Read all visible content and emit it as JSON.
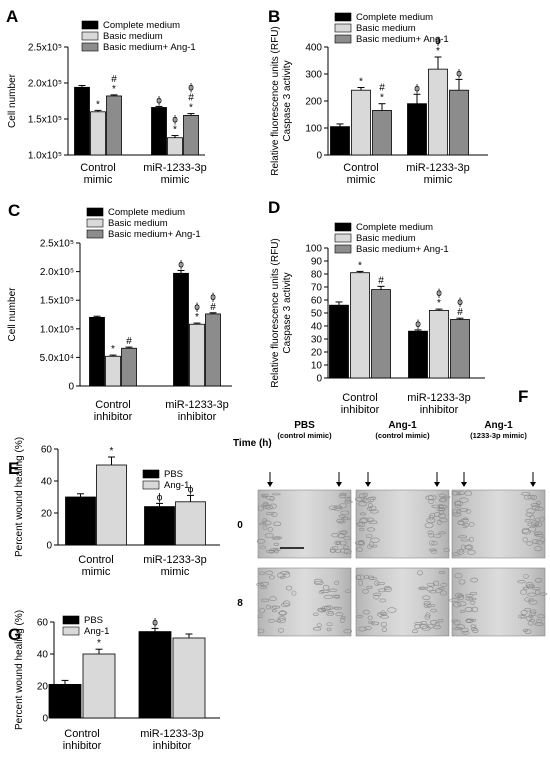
{
  "colors": {
    "black": "#000000",
    "light": "#d9d9d9",
    "gray": "#8c8c8c"
  },
  "chart_data": [
    {
      "panel": "A",
      "type": "bar",
      "categories": [
        "Control\nmimic",
        "miR-1233-3p\nmimic"
      ],
      "ylabel": "Cell number",
      "ylim": [
        100000,
        250000
      ],
      "ytick_labels": [
        "1.0x10⁵",
        "1.5x10⁵",
        "2.0x10⁵",
        "2.5x10⁵"
      ],
      "ytick_values": [
        100000,
        150000,
        200000,
        250000
      ],
      "legend": "top-left",
      "series": [
        {
          "name": "Complete medium",
          "values": [
            194000,
            166000
          ],
          "errors": [
            2500,
            1500
          ],
          "annotations": [
            "",
            "ϕ"
          ]
        },
        {
          "name": "Basic medium",
          "values": [
            160000,
            124000
          ],
          "errors": [
            2000,
            3000
          ],
          "annotations": [
            "*",
            "ϕ\n*"
          ]
        },
        {
          "name": "Basic medium+ Ang-1",
          "values": [
            182000,
            155000
          ],
          "errors": [
            1500,
            2500
          ],
          "annotations": [
            "#\n*",
            "ϕ\n#\n*"
          ]
        }
      ]
    },
    {
      "panel": "B",
      "type": "bar",
      "categories": [
        "Control\nmimic",
        "miR-1233-3p\nmimic"
      ],
      "ylabel": "Relative fluorescence units (RFU)\nCaspase 3 activity",
      "ylim": [
        0,
        400
      ],
      "ytick_labels": [
        "0",
        "100",
        "200",
        "300",
        "400"
      ],
      "ytick_values": [
        0,
        100,
        200,
        300,
        400
      ],
      "legend": "top-left",
      "series": [
        {
          "name": "Complete medium",
          "values": [
            105,
            190
          ],
          "errors": [
            10,
            35
          ],
          "annotations": [
            "",
            "ϕ"
          ]
        },
        {
          "name": "Basic medium",
          "values": [
            240,
            318
          ],
          "errors": [
            10,
            45
          ],
          "annotations": [
            "*",
            "ϕ\n*"
          ]
        },
        {
          "name": "Basic medium+ Ang-1",
          "values": [
            165,
            240
          ],
          "errors": [
            25,
            40
          ],
          "annotations": [
            "#\n*",
            "ϕ"
          ]
        }
      ]
    },
    {
      "panel": "C",
      "type": "bar",
      "categories": [
        "Control\ninhibitor",
        "miR-1233-3p\ninhibitor"
      ],
      "ylabel": "Cell number",
      "ylim": [
        0,
        250000
      ],
      "ytick_labels": [
        "0",
        "5.0x10⁴",
        "1.0x10⁵",
        "1.5x10⁵",
        "2.0x10⁵",
        "2.5x10⁵"
      ],
      "ytick_values": [
        0,
        50000,
        100000,
        150000,
        200000,
        250000
      ],
      "legend": "top-left",
      "series": [
        {
          "name": "Complete medium",
          "values": [
            120000,
            197000
          ],
          "errors": [
            2000,
            5000
          ],
          "annotations": [
            "",
            "ϕ"
          ]
        },
        {
          "name": "Basic medium",
          "values": [
            52000,
            108000
          ],
          "errors": [
            2000,
            2000
          ],
          "annotations": [
            "*",
            "ϕ\n*"
          ]
        },
        {
          "name": "Basic medium+ Ang-1",
          "values": [
            66000,
            126000
          ],
          "errors": [
            2000,
            2000
          ],
          "annotations": [
            "#",
            "ϕ\n#"
          ]
        }
      ]
    },
    {
      "panel": "D",
      "type": "bar",
      "categories": [
        "Control\ninhibitor",
        "miR-1233-3p\ninhibitor"
      ],
      "ylabel": "Relative fluorescence units (RFU)\nCaspase 3 activity",
      "ylim": [
        0,
        100
      ],
      "ytick_labels": [
        "0",
        "10",
        "20",
        "30",
        "40",
        "50",
        "60",
        "70",
        "80",
        "90",
        "100"
      ],
      "ytick_values": [
        0,
        10,
        20,
        30,
        40,
        50,
        60,
        70,
        80,
        90,
        100
      ],
      "legend": "top-left",
      "series": [
        {
          "name": "Complete medium",
          "values": [
            56,
            36
          ],
          "errors": [
            2.5,
            1
          ],
          "annotations": [
            "",
            "ϕ"
          ]
        },
        {
          "name": "Basic medium",
          "values": [
            81,
            52
          ],
          "errors": [
            1,
            1
          ],
          "annotations": [
            "*",
            "ϕ\n*"
          ]
        },
        {
          "name": "Basic medium+ Ang-1",
          "values": [
            68,
            45
          ],
          "errors": [
            2.5,
            1
          ],
          "annotations": [
            "#",
            "ϕ\n#"
          ]
        }
      ]
    },
    {
      "panel": "E",
      "type": "bar",
      "categories": [
        "Control\nmimic",
        "miR-1233-3p\nmimic"
      ],
      "ylabel": "Percent wound healing (%)",
      "ylim": [
        0,
        60
      ],
      "ytick_labels": [
        "0",
        "20",
        "40",
        "60"
      ],
      "ytick_values": [
        0,
        20,
        40,
        60
      ],
      "legend": "top-right",
      "series": [
        {
          "name": "PBS",
          "values": [
            30,
            24
          ],
          "errors": [
            2,
            2
          ],
          "annotations": [
            "",
            "ϕ"
          ]
        },
        {
          "name": "Ang-1",
          "values": [
            50,
            27
          ],
          "errors": [
            5,
            4
          ],
          "annotations": [
            "*",
            "ϕ"
          ]
        }
      ]
    },
    {
      "panel": "G",
      "type": "bar",
      "categories": [
        "Control\ninhibitor",
        "miR-1233-3p\ninhibitor"
      ],
      "ylabel": "Percent wound healing (%)",
      "ylim": [
        0,
        60
      ],
      "ytick_labels": [
        "0",
        "20",
        "40",
        "60"
      ],
      "ytick_values": [
        0,
        20,
        40,
        60
      ],
      "legend": "top-left",
      "series": [
        {
          "name": "PBS",
          "values": [
            21,
            54
          ],
          "errors": [
            2.5,
            2
          ],
          "annotations": [
            "",
            "ϕ"
          ]
        },
        {
          "name": "Ang-1",
          "values": [
            40,
            50
          ],
          "errors": [
            3,
            2.5
          ],
          "annotations": [
            "*",
            ""
          ]
        }
      ]
    }
  ],
  "micrograph": {
    "panel": "F",
    "time_label": "Time (h)",
    "columns": [
      {
        "title": "PBS",
        "subtitle": "(control mimic)"
      },
      {
        "title": "Ang-1",
        "subtitle": "(control mimic)"
      },
      {
        "title": "Ang-1",
        "subtitle": "(1233-3p mimic)"
      }
    ],
    "rows": [
      "0",
      "8"
    ]
  }
}
